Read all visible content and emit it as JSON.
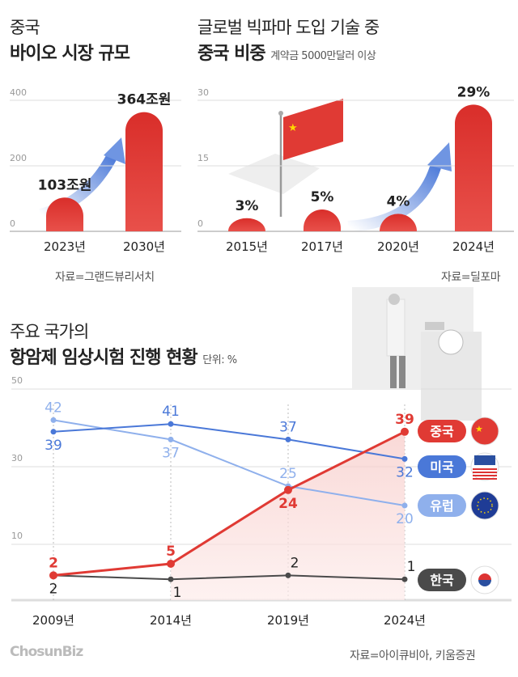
{
  "chart_data": [
    {
      "type": "bar",
      "title_line1": "중국",
      "title_line2": "바이오 시장 규모",
      "categories": [
        "2023년",
        "2030년"
      ],
      "values": [
        103,
        364
      ],
      "data_labels": [
        "103조원",
        "364조원"
      ],
      "yticks": [
        0,
        200,
        400
      ],
      "ylim": [
        0,
        400
      ],
      "source": "자료=그랜드뷰리서치",
      "color": "#e03a34"
    },
    {
      "type": "bar",
      "title_line1": "글로벌 빅파마 도입 기술 중",
      "title_line2": "중국 비중",
      "subtitle": "계약금 5000만달러 이상",
      "categories": [
        "2015년",
        "2017년",
        "2020년",
        "2024년"
      ],
      "values": [
        3,
        5,
        4,
        29
      ],
      "data_labels": [
        "3%",
        "5%",
        "4%",
        "29%"
      ],
      "yticks": [
        0,
        15,
        30
      ],
      "ylim": [
        0,
        30
      ],
      "source": "자료=딜포마",
      "color": "#e03a34"
    },
    {
      "type": "line",
      "title_line1": "주요 국가의",
      "title_line2": "항암제 임상시험 진행 현황",
      "unit": "단위: %",
      "categories": [
        "2009년",
        "2014년",
        "2019년",
        "2024년"
      ],
      "yticks": [
        10,
        30,
        50
      ],
      "series": [
        {
          "name": "중국",
          "values": [
            2,
            5,
            24,
            39
          ],
          "color": "#e03a34",
          "flag": "china-flag"
        },
        {
          "name": "미국",
          "values": [
            39,
            41,
            37,
            32
          ],
          "color": "#4a78d8",
          "flag": "usa-flag"
        },
        {
          "name": "유럽",
          "values": [
            42,
            37,
            25,
            20
          ],
          "color": "#8fb0ec",
          "flag": "eu-flag"
        },
        {
          "name": "한국",
          "values": [
            2,
            1,
            2,
            1
          ],
          "color": "#4a4a4a",
          "flag": "korea-flag"
        }
      ],
      "source": "자료=아이큐비아, 키움증권"
    }
  ],
  "logo": "ChosunBiz"
}
